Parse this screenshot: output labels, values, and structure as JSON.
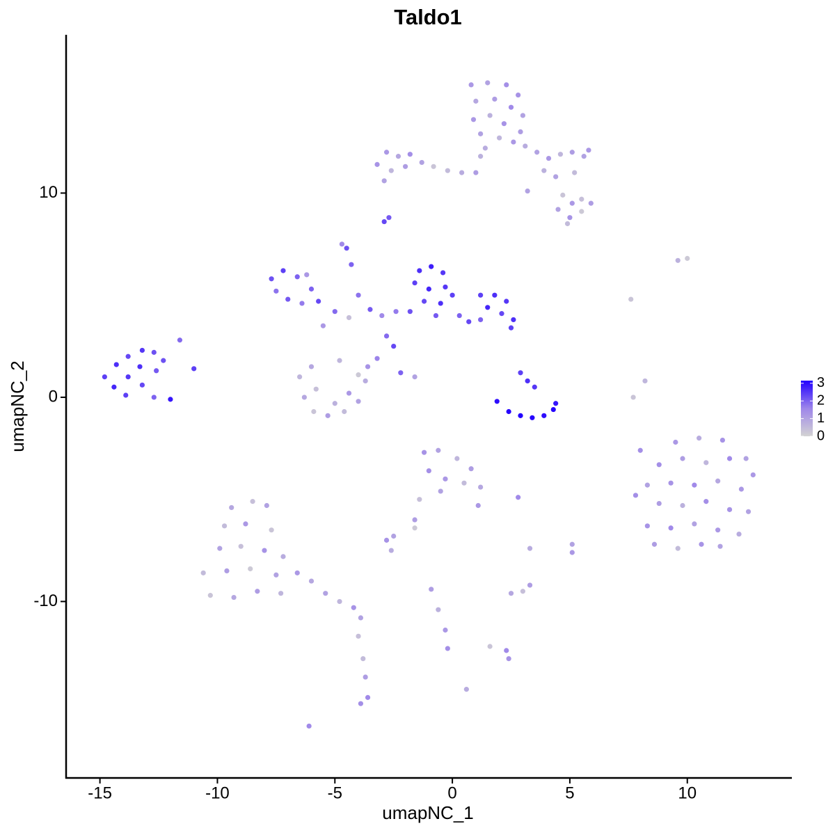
{
  "chart_data": {
    "type": "scatter",
    "title": "Taldo1",
    "x_label": "umapNC_1",
    "y_label": "umapNC_2",
    "xlim": [
      -16.44,
      14.45
    ],
    "ylim": [
      -18.64,
      17.75
    ],
    "xticks": [
      -15,
      -10,
      -5,
      0,
      5,
      10
    ],
    "yticks": [
      -10,
      0,
      10
    ],
    "colors": [
      "#d3d3d3",
      "#9e86ea",
      "#2200ff"
    ],
    "color_lim": [
      0,
      3.15
    ],
    "color_ticks": [
      0,
      1,
      2,
      3
    ],
    "legend": "right",
    "points": [
      [
        0.8,
        15.3,
        1.2
      ],
      [
        1.5,
        15.4,
        1.0
      ],
      [
        2.3,
        15.3,
        1.4
      ],
      [
        2.8,
        14.8,
        1.3
      ],
      [
        1.0,
        14.5,
        0.9
      ],
      [
        1.8,
        14.6,
        1.1
      ],
      [
        2.5,
        14.2,
        1.5
      ],
      [
        3.0,
        13.8,
        1.0
      ],
      [
        0.9,
        13.6,
        1.2
      ],
      [
        1.6,
        13.8,
        0.7
      ],
      [
        2.2,
        13.4,
        1.3
      ],
      [
        2.9,
        13.0,
        1.1
      ],
      [
        1.2,
        12.9,
        1.0
      ],
      [
        2.0,
        12.7,
        0.6
      ],
      [
        2.6,
        12.5,
        1.2
      ],
      [
        1.4,
        12.2,
        0.8
      ],
      [
        -3.2,
        11.4,
        1.3
      ],
      [
        -2.8,
        12.0,
        1.2
      ],
      [
        -2.3,
        11.8,
        0.9
      ],
      [
        -1.8,
        11.9,
        1.4
      ],
      [
        -1.3,
        11.5,
        1.0
      ],
      [
        -2.6,
        11.1,
        0.6
      ],
      [
        -2.0,
        11.3,
        1.1
      ],
      [
        -0.8,
        11.3,
        0.3
      ],
      [
        -0.2,
        11.1,
        0.5
      ],
      [
        0.4,
        11.0,
        0.8
      ],
      [
        1.0,
        11.0,
        1.1
      ],
      [
        1.2,
        11.8,
        0.7
      ],
      [
        -2.9,
        10.6,
        1.0
      ],
      [
        3.1,
        12.3,
        0.8
      ],
      [
        3.6,
        12.0,
        1.0
      ],
      [
        4.1,
        11.7,
        1.2
      ],
      [
        4.6,
        11.9,
        0.6
      ],
      [
        5.1,
        12.0,
        1.1
      ],
      [
        5.6,
        11.8,
        1.0
      ],
      [
        5.8,
        12.1,
        1.2
      ],
      [
        3.9,
        11.1,
        0.7
      ],
      [
        4.4,
        10.8,
        1.0
      ],
      [
        5.2,
        11.0,
        0.5
      ],
      [
        3.2,
        10.1,
        1.0
      ],
      [
        4.7,
        9.9,
        0.3
      ],
      [
        5.1,
        9.5,
        1.2
      ],
      [
        5.5,
        9.7,
        0.4
      ],
      [
        5.9,
        9.5,
        1.1
      ],
      [
        4.5,
        9.2,
        1.0
      ],
      [
        5.0,
        8.8,
        1.3
      ],
      [
        5.5,
        9.1,
        0.2
      ],
      [
        4.9,
        8.5,
        0.5
      ],
      [
        -2.9,
        8.6,
        2.3
      ],
      [
        -2.7,
        8.8,
        2.1
      ],
      [
        -4.5,
        7.3,
        2.2
      ],
      [
        -4.7,
        7.5,
        1.5
      ],
      [
        -4.3,
        6.5,
        2.0
      ],
      [
        -4.0,
        5.0,
        1.8
      ],
      [
        -3.5,
        4.3,
        2.1
      ],
      [
        -2.8,
        3.0,
        1.9
      ],
      [
        -2.5,
        2.5,
        2.3
      ],
      [
        -3.0,
        4.0,
        1.5
      ],
      [
        -5.0,
        4.2,
        1.9
      ],
      [
        -5.5,
        3.5,
        1.2
      ],
      [
        -4.4,
        3.9,
        0.4
      ],
      [
        -2.4,
        4.2,
        1.7
      ],
      [
        -3.2,
        1.9,
        1.6
      ],
      [
        -2.2,
        1.2,
        2.0
      ],
      [
        -1.6,
        1.0,
        1.0
      ],
      [
        -7.7,
        5.8,
        2.2
      ],
      [
        -7.2,
        6.2,
        2.4
      ],
      [
        -6.6,
        5.9,
        2.0
      ],
      [
        -7.5,
        5.2,
        1.8
      ],
      [
        -7.0,
        4.8,
        2.1
      ],
      [
        -6.4,
        4.6,
        1.7
      ],
      [
        -6.0,
        5.3,
        2.0
      ],
      [
        -5.7,
        4.7,
        2.3
      ],
      [
        -6.2,
        6.0,
        1.2
      ],
      [
        -1.4,
        6.2,
        2.6
      ],
      [
        -0.9,
        6.4,
        2.8
      ],
      [
        -0.4,
        6.1,
        2.5
      ],
      [
        -1.6,
        5.6,
        2.4
      ],
      [
        -1.0,
        5.3,
        2.7
      ],
      [
        -0.3,
        5.4,
        2.5
      ],
      [
        -1.2,
        4.7,
        2.3
      ],
      [
        -0.5,
        4.6,
        2.6
      ],
      [
        0.0,
        5.0,
        2.4
      ],
      [
        -1.8,
        4.2,
        2.2
      ],
      [
        -0.7,
        4.0,
        2.1
      ],
      [
        0.3,
        4.0,
        2.0
      ],
      [
        0.7,
        3.7,
        2.3
      ],
      [
        1.2,
        5.0,
        2.4
      ],
      [
        1.8,
        5.0,
        2.6
      ],
      [
        2.3,
        4.7,
        2.5
      ],
      [
        1.5,
        4.4,
        2.7
      ],
      [
        2.1,
        4.1,
        2.3
      ],
      [
        2.6,
        3.8,
        2.6
      ],
      [
        1.2,
        3.8,
        2.0
      ],
      [
        2.5,
        3.4,
        2.4
      ],
      [
        -6.5,
        1.0,
        0.6
      ],
      [
        -6.3,
        0.0,
        0.9
      ],
      [
        -5.9,
        -0.7,
        0.3
      ],
      [
        -5.3,
        -0.9,
        1.1
      ],
      [
        -4.6,
        -0.7,
        0.5
      ],
      [
        -4.0,
        -0.2,
        1.0
      ],
      [
        -3.7,
        0.8,
        0.8
      ],
      [
        -3.6,
        1.5,
        1.3
      ],
      [
        -5.8,
        0.4,
        0.4
      ],
      [
        -5.0,
        -0.3,
        0.7
      ],
      [
        -4.4,
        0.2,
        1.2
      ],
      [
        -6.0,
        1.5,
        0.9
      ],
      [
        -4.8,
        1.8,
        0.6
      ],
      [
        -4.0,
        1.1,
        0.2
      ],
      [
        -14.8,
        1.0,
        2.4
      ],
      [
        -14.3,
        1.6,
        2.6
      ],
      [
        -13.8,
        2.0,
        2.3
      ],
      [
        -13.2,
        2.3,
        2.5
      ],
      [
        -12.7,
        2.2,
        2.2
      ],
      [
        -14.4,
        0.5,
        2.7
      ],
      [
        -13.8,
        1.0,
        2.5
      ],
      [
        -13.3,
        1.5,
        2.6
      ],
      [
        -12.6,
        1.3,
        2.1
      ],
      [
        -13.9,
        0.1,
        2.4
      ],
      [
        -13.2,
        0.6,
        2.3
      ],
      [
        -12.7,
        0.0,
        2.0
      ],
      [
        -12.0,
        -0.1,
        2.9
      ],
      [
        -12.3,
        1.8,
        2.2
      ],
      [
        -11.6,
        2.8,
        1.9
      ],
      [
        -11.0,
        1.4,
        2.4
      ],
      [
        1.9,
        -0.2,
        3.0
      ],
      [
        2.4,
        -0.7,
        3.1
      ],
      [
        2.9,
        -0.9,
        3.2
      ],
      [
        3.4,
        -1.0,
        3.1
      ],
      [
        3.9,
        -0.9,
        3.0
      ],
      [
        4.3,
        -0.6,
        3.1
      ],
      [
        4.4,
        -0.3,
        2.9
      ],
      [
        3.2,
        0.8,
        2.6
      ],
      [
        2.9,
        1.2,
        2.4
      ],
      [
        3.5,
        0.5,
        2.5
      ],
      [
        -1.2,
        -2.7,
        1.3
      ],
      [
        -0.6,
        -2.6,
        1.0
      ],
      [
        0.2,
        -3.0,
        0.6
      ],
      [
        0.8,
        -3.5,
        1.1
      ],
      [
        1.2,
        -4.4,
        0.9
      ],
      [
        1.1,
        -5.3,
        1.2
      ],
      [
        -1.0,
        -3.6,
        1.4
      ],
      [
        -0.3,
        -4.0,
        1.2
      ],
      [
        0.5,
        -4.2,
        0.5
      ],
      [
        -0.5,
        -4.6,
        1.0
      ],
      [
        -1.4,
        -5.0,
        0.4
      ],
      [
        -1.6,
        -6.0,
        1.1
      ],
      [
        -2.5,
        -6.8,
        1.0
      ],
      [
        -2.8,
        -7.0,
        1.3
      ],
      [
        -2.6,
        -7.5,
        0.8
      ],
      [
        9.5,
        -2.2,
        1.2
      ],
      [
        10.5,
        -2.0,
        0.8
      ],
      [
        11.5,
        -2.1,
        1.3
      ],
      [
        12.5,
        -3.0,
        1.0
      ],
      [
        8.8,
        -3.3,
        1.4
      ],
      [
        9.8,
        -3.0,
        1.1
      ],
      [
        10.8,
        -3.2,
        0.6
      ],
      [
        11.8,
        -3.0,
        1.5
      ],
      [
        12.8,
        -3.8,
        1.2
      ],
      [
        8.3,
        -4.3,
        1.0
      ],
      [
        9.3,
        -4.2,
        1.3
      ],
      [
        10.3,
        -4.3,
        1.5
      ],
      [
        11.3,
        -4.1,
        0.9
      ],
      [
        12.3,
        -4.5,
        1.2
      ],
      [
        7.8,
        -4.8,
        1.4
      ],
      [
        8.8,
        -5.2,
        1.1
      ],
      [
        9.8,
        -5.3,
        0.7
      ],
      [
        10.8,
        -5.1,
        1.4
      ],
      [
        11.8,
        -5.5,
        1.3
      ],
      [
        12.6,
        -5.6,
        1.0
      ],
      [
        8.3,
        -6.3,
        1.3
      ],
      [
        9.3,
        -6.4,
        1.5
      ],
      [
        10.3,
        -6.2,
        1.0
      ],
      [
        11.3,
        -6.5,
        1.2
      ],
      [
        12.2,
        -6.7,
        0.8
      ],
      [
        8.6,
        -7.2,
        1.1
      ],
      [
        9.6,
        -7.4,
        0.5
      ],
      [
        10.6,
        -7.2,
        1.3
      ],
      [
        11.4,
        -7.3,
        1.0
      ],
      [
        7.7,
        0.0,
        0.3
      ],
      [
        8.2,
        0.8,
        0.6
      ],
      [
        8.0,
        -2.6,
        1.4
      ],
      [
        9.6,
        6.7,
        0.7
      ],
      [
        10.0,
        6.8,
        0.2
      ],
      [
        7.6,
        4.8,
        0.3
      ],
      [
        -9.4,
        -5.4,
        0.9
      ],
      [
        -8.5,
        -5.1,
        0.4
      ],
      [
        -7.9,
        -5.3,
        1.0
      ],
      [
        -9.7,
        -6.3,
        0.5
      ],
      [
        -8.8,
        -6.2,
        1.2
      ],
      [
        -7.7,
        -6.5,
        0.3
      ],
      [
        -9.9,
        -7.4,
        1.0
      ],
      [
        -9.0,
        -7.3,
        0.4
      ],
      [
        -8.0,
        -7.5,
        1.3
      ],
      [
        -7.2,
        -7.8,
        0.8
      ],
      [
        -10.6,
        -8.6,
        0.5
      ],
      [
        -9.6,
        -8.5,
        1.1
      ],
      [
        -8.6,
        -8.4,
        0.2
      ],
      [
        -7.5,
        -8.7,
        1.0
      ],
      [
        -10.3,
        -9.7,
        0.3
      ],
      [
        -9.3,
        -9.8,
        0.9
      ],
      [
        -8.3,
        -9.5,
        1.1
      ],
      [
        -7.3,
        -9.6,
        0.6
      ],
      [
        -6.6,
        -8.6,
        1.2
      ],
      [
        -6.0,
        -9.0,
        0.9
      ],
      [
        -5.4,
        -9.6,
        1.0
      ],
      [
        -4.8,
        -10.0,
        0.6
      ],
      [
        -4.2,
        -10.3,
        1.3
      ],
      [
        -3.9,
        -10.8,
        1.0
      ],
      [
        -4.0,
        -11.7,
        0.4
      ],
      [
        -3.8,
        -12.8,
        0.5
      ],
      [
        -3.7,
        -13.7,
        1.1
      ],
      [
        -3.6,
        -14.7,
        1.5
      ],
      [
        -3.9,
        -15.0,
        1.4
      ],
      [
        -6.1,
        -16.1,
        1.5
      ],
      [
        -0.9,
        -9.4,
        1.1
      ],
      [
        -0.6,
        -10.4,
        0.7
      ],
      [
        -0.3,
        -11.4,
        1.2
      ],
      [
        -0.2,
        -12.3,
        1.4
      ],
      [
        2.5,
        -9.6,
        0.9
      ],
      [
        3.0,
        -9.5,
        0.4
      ],
      [
        3.3,
        -9.2,
        1.1
      ],
      [
        2.3,
        -12.4,
        1.5
      ],
      [
        2.4,
        -12.8,
        1.3
      ],
      [
        3.3,
        -7.4,
        0.8
      ],
      [
        5.1,
        -7.2,
        1.0
      ],
      [
        5.1,
        -7.6,
        1.2
      ],
      [
        2.8,
        -4.9,
        1.5
      ],
      [
        0.6,
        -14.3,
        0.8
      ],
      [
        -1.6,
        -6.4,
        0.2
      ],
      [
        1.6,
        -12.2,
        0.3
      ]
    ]
  }
}
